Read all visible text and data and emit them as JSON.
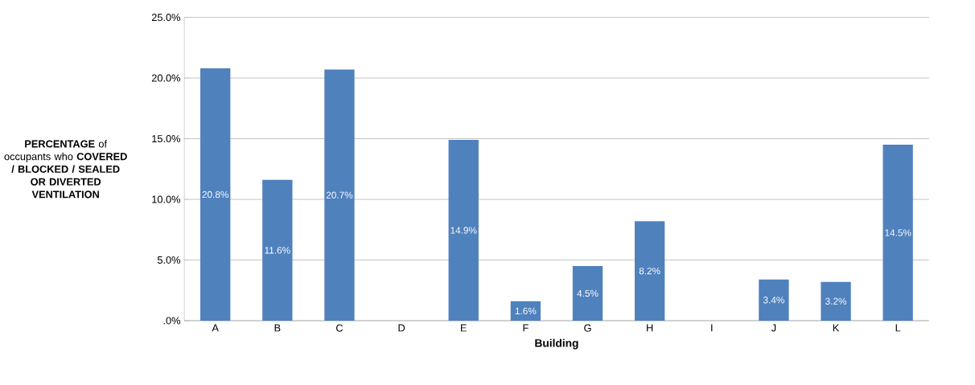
{
  "chart_data": {
    "type": "bar",
    "xlabel": "Building",
    "ylabel": "**PERCENTAGE** of occupants who **COVERED / BLOCKED / SEALED OR DIVERTED VENTILATION**",
    "categories": [
      "A",
      "B",
      "C",
      "D",
      "E",
      "F",
      "G",
      "H",
      "I",
      "J",
      "K",
      "L"
    ],
    "values": [
      20.8,
      11.6,
      20.7,
      null,
      14.9,
      1.6,
      4.5,
      8.2,
      null,
      3.4,
      3.2,
      14.5
    ],
    "value_labels": [
      "20.8%",
      "11.6%",
      "20.7%",
      null,
      "14.9%",
      "1.6%",
      "4.5%",
      "8.2%",
      null,
      "3.4%",
      "3.2%",
      "14.5%"
    ],
    "color": "#4f81bd",
    "ylim": [
      0,
      25
    ],
    "yticks": [
      {
        "value": 0,
        "label": ".0%"
      },
      {
        "value": 5,
        "label": "5.0%"
      },
      {
        "value": 10,
        "label": "10.0%"
      },
      {
        "value": 15,
        "label": "15.0%"
      },
      {
        "value": 20,
        "label": "20.0%"
      },
      {
        "value": 25,
        "label": "25.0%"
      }
    ],
    "grid": "y"
  }
}
